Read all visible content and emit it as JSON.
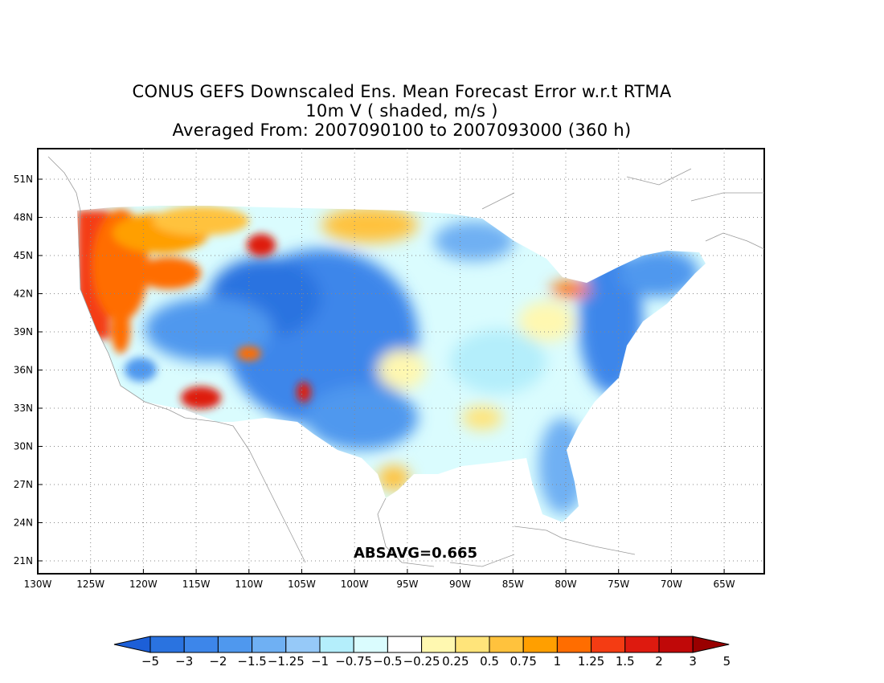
{
  "title": {
    "line1": "CONUS GEFS Downscaled Ens. Mean Forecast Error w.r.t RTMA",
    "line2": "10m V ( shaded, m/s )",
    "line3": "Averaged From: 2007090100 to 2007093000 (360 h)"
  },
  "stat_label": "ABSAVG=0.665",
  "map": {
    "lat_ticks": [
      "51N",
      "48N",
      "45N",
      "42N",
      "39N",
      "36N",
      "33N",
      "30N",
      "27N",
      "24N",
      "21N"
    ],
    "lon_ticks": [
      "130W",
      "125W",
      "120W",
      "115W",
      "110W",
      "105W",
      "100W",
      "95W",
      "90W",
      "85W",
      "80W",
      "75W",
      "70W",
      "65W"
    ],
    "lat_range": [
      20,
      52
    ],
    "lon_range": [
      -130,
      -61.5
    ],
    "grid": true,
    "projection": "latlon"
  },
  "colorbar": {
    "labels": [
      "-5",
      "-3",
      "-2",
      "-1.5",
      "-1.25",
      "-1",
      "-0.75",
      "-0.5",
      "-0.25",
      "0.25",
      "0.5",
      "0.75",
      "1",
      "1.25",
      "1.5",
      "2",
      "3",
      "5"
    ],
    "colors": [
      "#1c5fd8",
      "#2a73e0",
      "#3d86ea",
      "#4f98ee",
      "#6fb0f3",
      "#96c9f8",
      "#b4eefb",
      "#dafcfe",
      "#ffffff",
      "#fff8b0",
      "#ffe47a",
      "#ffc23d",
      "#ff9f00",
      "#ff6d00",
      "#f43c13",
      "#de1a0f",
      "#c00808",
      "#990000"
    ]
  }
}
